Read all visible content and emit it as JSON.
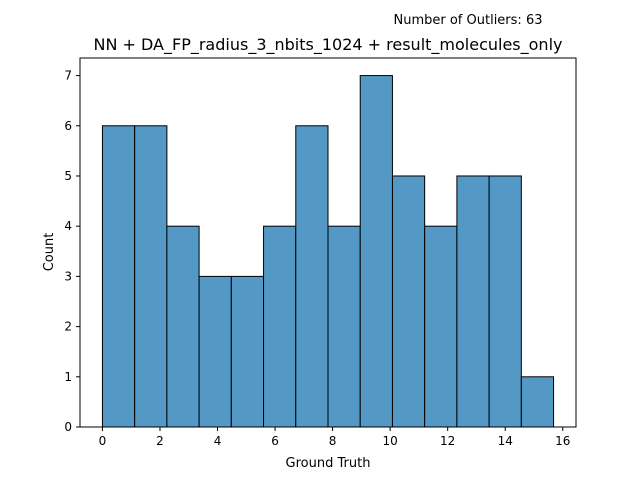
{
  "annotation": "Number of Outliers: 63",
  "chart_data": {
    "type": "bar",
    "title": "NN + DA_FP_radius_3_nbits_1024 + result_molecules_only",
    "xlabel": "Ground Truth",
    "ylabel": "Count",
    "bin_edges": [
      0.0,
      1.12,
      2.24,
      3.36,
      4.48,
      5.6,
      6.72,
      7.84,
      8.96,
      10.08,
      11.2,
      12.32,
      13.44,
      14.56,
      15.68
    ],
    "values": [
      6,
      6,
      4,
      3,
      3,
      4,
      6,
      4,
      7,
      5,
      4,
      5,
      5,
      1
    ],
    "xlim": [
      -0.78,
      16.46
    ],
    "ylim": [
      0,
      7.35
    ],
    "xticks": [
      0,
      2,
      4,
      6,
      8,
      10,
      12,
      14,
      16
    ],
    "yticks": [
      0,
      1,
      2,
      3,
      4,
      5,
      6,
      7
    ],
    "grid": false,
    "legend": "none",
    "bar_color": "#5498c6",
    "edge_color": "#000000"
  }
}
